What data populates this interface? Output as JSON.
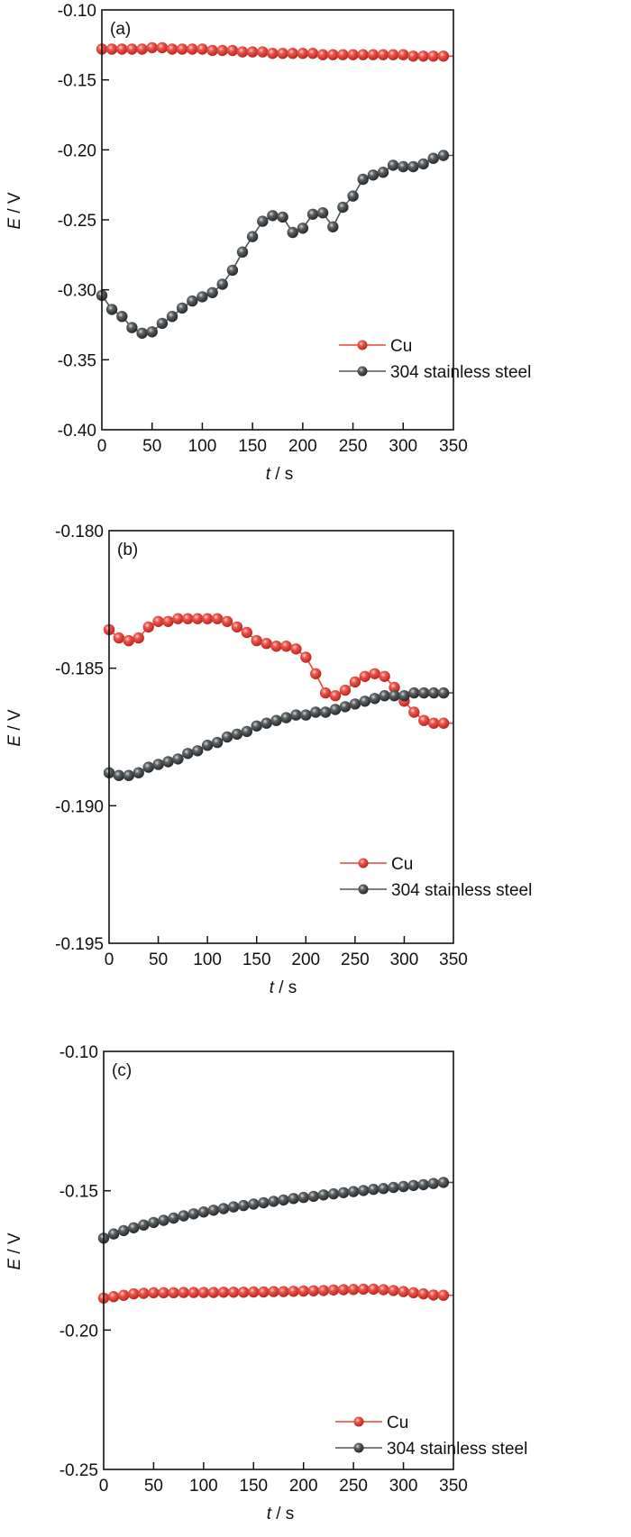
{
  "colors": {
    "cu": "#e8453c",
    "cu_dark": "#b42a22",
    "ss": "#505558",
    "ss_dark": "#2a2d30",
    "axis": "#111111"
  },
  "chart_data": [
    {
      "type": "line",
      "panel_label": "(a)",
      "title": "",
      "xlabel": "t / s",
      "xlabel_italic": "t",
      "xlabel_unit": " / s",
      "ylabel": "E / V",
      "ylabel_italic": "E",
      "ylabel_unit": " / V",
      "xlim": [
        0,
        350
      ],
      "ylim": [
        -0.4,
        -0.1
      ],
      "xticks": [
        0,
        50,
        100,
        150,
        200,
        250,
        300,
        350
      ],
      "xtick_labels": [
        "0",
        "50",
        "100",
        "150",
        "200",
        "250",
        "300",
        "350"
      ],
      "yticks": [
        -0.4,
        -0.35,
        -0.3,
        -0.25,
        -0.2,
        -0.15,
        -0.1
      ],
      "ytick_labels": [
        "-0.40",
        "-0.35",
        "-0.30",
        "-0.25",
        "-0.20",
        "-0.15",
        "-0.10"
      ],
      "grid": false,
      "legend_position": "bottom-right",
      "x": [
        0,
        10,
        20,
        30,
        40,
        50,
        60,
        70,
        80,
        90,
        100,
        110,
        120,
        130,
        140,
        150,
        160,
        170,
        180,
        190,
        200,
        210,
        220,
        230,
        240,
        250,
        260,
        270,
        280,
        290,
        300,
        310,
        320,
        330,
        340
      ],
      "series": [
        {
          "name": "Cu",
          "color_key": "cu",
          "values": [
            -0.128,
            -0.128,
            -0.128,
            -0.128,
            -0.128,
            -0.127,
            -0.127,
            -0.128,
            -0.128,
            -0.128,
            -0.128,
            -0.129,
            -0.129,
            -0.129,
            -0.13,
            -0.13,
            -0.13,
            -0.131,
            -0.131,
            -0.131,
            -0.131,
            -0.131,
            -0.132,
            -0.132,
            -0.132,
            -0.132,
            -0.132,
            -0.132,
            -0.132,
            -0.132,
            -0.132,
            -0.133,
            -0.133,
            -0.133,
            -0.133
          ]
        },
        {
          "name": "304 stainless steel",
          "color_key": "ss",
          "values": [
            -0.304,
            -0.314,
            -0.319,
            -0.327,
            -0.331,
            -0.33,
            -0.324,
            -0.319,
            -0.313,
            -0.308,
            -0.305,
            -0.302,
            -0.296,
            -0.286,
            -0.273,
            -0.262,
            -0.251,
            -0.247,
            -0.248,
            -0.259,
            -0.256,
            -0.246,
            -0.245,
            -0.255,
            -0.241,
            -0.233,
            -0.221,
            -0.218,
            -0.216,
            -0.211,
            -0.212,
            -0.212,
            -0.21,
            -0.206,
            -0.204
          ]
        }
      ]
    },
    {
      "type": "line",
      "panel_label": "(b)",
      "title": "",
      "xlabel": "t / s",
      "xlabel_italic": "t",
      "xlabel_unit": " / s",
      "ylabel": "E / V",
      "ylabel_italic": "E",
      "ylabel_unit": " / V",
      "xlim": [
        0,
        350
      ],
      "ylim": [
        -0.195,
        -0.18
      ],
      "xticks": [
        0,
        50,
        100,
        150,
        200,
        250,
        300,
        350
      ],
      "xtick_labels": [
        "0",
        "50",
        "100",
        "150",
        "200",
        "250",
        "300",
        "350"
      ],
      "yticks": [
        -0.195,
        -0.19,
        -0.185,
        -0.18
      ],
      "ytick_labels": [
        "-0.195",
        "-0.190",
        "-0.185",
        "-0.180"
      ],
      "grid": false,
      "legend_position": "bottom-right",
      "x": [
        0,
        10,
        20,
        30,
        40,
        50,
        60,
        70,
        80,
        90,
        100,
        110,
        120,
        130,
        140,
        150,
        160,
        170,
        180,
        190,
        200,
        210,
        220,
        230,
        240,
        250,
        260,
        270,
        280,
        290,
        300,
        310,
        320,
        330,
        340
      ],
      "series": [
        {
          "name": "Cu",
          "color_key": "cu",
          "values": [
            -0.1836,
            -0.1839,
            -0.184,
            -0.1839,
            -0.1835,
            -0.1833,
            -0.1833,
            -0.1832,
            -0.1832,
            -0.1832,
            -0.1832,
            -0.1832,
            -0.1833,
            -0.1835,
            -0.1837,
            -0.184,
            -0.1841,
            -0.1842,
            -0.1842,
            -0.1843,
            -0.1846,
            -0.1852,
            -0.1859,
            -0.186,
            -0.1858,
            -0.1855,
            -0.1853,
            -0.1852,
            -0.1853,
            -0.1857,
            -0.1862,
            -0.1866,
            -0.1869,
            -0.187,
            -0.187
          ]
        },
        {
          "name": "304 stainless steel",
          "color_key": "ss",
          "values": [
            -0.1888,
            -0.1889,
            -0.1889,
            -0.1888,
            -0.1886,
            -0.1885,
            -0.1884,
            -0.1883,
            -0.1881,
            -0.188,
            -0.1878,
            -0.1877,
            -0.1875,
            -0.1874,
            -0.1873,
            -0.1871,
            -0.187,
            -0.1869,
            -0.1868,
            -0.1867,
            -0.1867,
            -0.1866,
            -0.1866,
            -0.1865,
            -0.1864,
            -0.1863,
            -0.1862,
            -0.1861,
            -0.186,
            -0.186,
            -0.186,
            -0.1859,
            -0.1859,
            -0.1859,
            -0.1859
          ]
        }
      ]
    },
    {
      "type": "line",
      "panel_label": "(c)",
      "title": "",
      "xlabel": "t / s",
      "xlabel_italic": "t",
      "xlabel_unit": " / s",
      "ylabel": "E / V",
      "ylabel_italic": "E",
      "ylabel_unit": " / V",
      "xlim": [
        0,
        350
      ],
      "ylim": [
        -0.25,
        -0.1
      ],
      "xticks": [
        0,
        50,
        100,
        150,
        200,
        250,
        300,
        350
      ],
      "xtick_labels": [
        "0",
        "50",
        "100",
        "150",
        "200",
        "250",
        "300",
        "350"
      ],
      "yticks": [
        -0.25,
        -0.2,
        -0.15,
        -0.1
      ],
      "ytick_labels": [
        "-0.25",
        "-0.20",
        "-0.15",
        "-0.10"
      ],
      "grid": false,
      "legend_position": "bottom-right",
      "x": [
        0,
        10,
        20,
        30,
        40,
        50,
        60,
        70,
        80,
        90,
        100,
        110,
        120,
        130,
        140,
        150,
        160,
        170,
        180,
        190,
        200,
        210,
        220,
        230,
        240,
        250,
        260,
        270,
        280,
        290,
        300,
        310,
        320,
        330,
        340
      ],
      "series": [
        {
          "name": "Cu",
          "color_key": "cu",
          "values": [
            -0.1885,
            -0.188,
            -0.1875,
            -0.187,
            -0.1868,
            -0.1866,
            -0.1866,
            -0.1866,
            -0.1865,
            -0.1865,
            -0.1865,
            -0.1865,
            -0.1864,
            -0.1864,
            -0.1864,
            -0.1863,
            -0.1863,
            -0.1862,
            -0.1862,
            -0.1861,
            -0.186,
            -0.1859,
            -0.1858,
            -0.1856,
            -0.1855,
            -0.1854,
            -0.1853,
            -0.1853,
            -0.1855,
            -0.1858,
            -0.1862,
            -0.1866,
            -0.187,
            -0.1874,
            -0.1875
          ]
        },
        {
          "name": "304 stainless steel",
          "color_key": "ss",
          "values": [
            -0.167,
            -0.1655,
            -0.1643,
            -0.1633,
            -0.1623,
            -0.1614,
            -0.1606,
            -0.1598,
            -0.159,
            -0.1583,
            -0.1576,
            -0.157,
            -0.1564,
            -0.1558,
            -0.1553,
            -0.1548,
            -0.1543,
            -0.1538,
            -0.1533,
            -0.1528,
            -0.1524,
            -0.152,
            -0.1515,
            -0.1511,
            -0.1507,
            -0.1503,
            -0.1499,
            -0.1495,
            -0.1492,
            -0.1488,
            -0.1485,
            -0.1481,
            -0.1478,
            -0.1474,
            -0.147
          ]
        }
      ]
    }
  ]
}
